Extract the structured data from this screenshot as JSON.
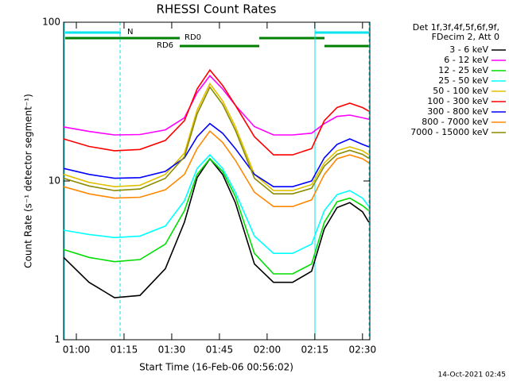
{
  "chart_data": {
    "type": "line",
    "title": "RHESSI Count Rates",
    "x_label": "Start Time (16-Feb-06 00:56:02)",
    "y_label": "Count Rate (s⁻¹ detector segment⁻¹)",
    "legend_title": [
      "Det 1f,3f,4f,5f,6f,9f,",
      "FDecim 2, Att 0"
    ],
    "footer": "14-Oct-2021 02:45",
    "annotations": [
      "N",
      "RD0",
      "RD6"
    ],
    "log_y": true,
    "legend": "right",
    "xlim": [
      56,
      152.3
    ],
    "ylim": [
      1,
      100
    ],
    "xticks": [
      {
        "value": 60,
        "label": "01:00"
      },
      {
        "value": 75,
        "label": "01:15"
      },
      {
        "value": 90,
        "label": "01:30"
      },
      {
        "value": 105,
        "label": "01:45"
      },
      {
        "value": 120,
        "label": "02:00"
      },
      {
        "value": 135,
        "label": "02:15"
      },
      {
        "value": 150,
        "label": "02:30"
      }
    ],
    "yticks": [
      1,
      10,
      100
    ],
    "x": [
      56,
      64,
      72,
      80,
      88,
      94,
      98,
      102,
      106,
      110,
      116,
      122,
      128,
      134,
      138,
      142,
      146,
      150,
      152
    ],
    "series": [
      {
        "name": "3 - 6 keV",
        "color": "#000000",
        "values": [
          3.3,
          2.3,
          1.84,
          1.9,
          2.8,
          5.5,
          10.5,
          13.8,
          11,
          7.3,
          3,
          2.3,
          2.3,
          2.7,
          5,
          6.8,
          7.3,
          6.4,
          5.5
        ]
      },
      {
        "name": "6 - 12 keV",
        "color": "#ff00ff",
        "values": [
          21.9,
          20.5,
          19.5,
          19.6,
          21,
          25,
          36,
          46,
          38,
          30,
          22,
          19.5,
          19.5,
          20,
          23,
          25.5,
          26,
          25,
          24.5
        ]
      },
      {
        "name": "12 - 25 keV",
        "color": "#00dd00",
        "values": [
          3.7,
          3.3,
          3.1,
          3.2,
          4,
          6.5,
          11,
          13.8,
          11.5,
          8,
          3.5,
          2.6,
          2.6,
          3,
          5.5,
          7.4,
          7.8,
          7,
          6.5
        ]
      },
      {
        "name": "25 - 50 keV",
        "color": "#00ffff",
        "values": [
          4.9,
          4.6,
          4.4,
          4.5,
          5.2,
          7.5,
          12,
          14.6,
          12,
          8.5,
          4.5,
          3.5,
          3.5,
          4,
          6.5,
          8.2,
          8.7,
          7.8,
          6.9
        ]
      },
      {
        "name": "50 - 100 keV",
        "color": "#e0c000",
        "values": [
          11,
          9.8,
          9.2,
          9.4,
          11,
          15,
          28,
          41,
          32,
          22,
          11,
          8.7,
          8.7,
          9.5,
          13,
          15.5,
          16.4,
          15.5,
          14.6
        ]
      },
      {
        "name": "100 - 300 keV",
        "color": "#ff0000",
        "values": [
          18.4,
          16.5,
          15.5,
          15.8,
          18,
          24,
          38,
          50,
          40,
          30,
          19,
          14.6,
          14.6,
          16,
          24,
          29,
          30.9,
          29,
          27.5
        ]
      },
      {
        "name": "300 - 800 keV",
        "color": "#0000ff",
        "values": [
          12,
          11,
          10.4,
          10.5,
          11.5,
          14,
          19,
          23,
          20,
          16,
          11,
          9.2,
          9.2,
          10,
          14,
          17,
          18.4,
          17,
          16.4
        ]
      },
      {
        "name": "800 - 7000 keV",
        "color": "#ff8800",
        "values": [
          9.2,
          8.3,
          7.8,
          7.9,
          8.8,
          11,
          16,
          20.6,
          17.5,
          13.5,
          8.5,
          6.9,
          6.9,
          7.6,
          11,
          13.8,
          14.6,
          13.8,
          13
        ]
      },
      {
        "name": "7000 - 15000 keV",
        "color": "#8b8b00",
        "values": [
          10.4,
          9.3,
          8.7,
          8.9,
          10.4,
          14.2,
          26.5,
          39,
          30.4,
          20.9,
          10.4,
          8.3,
          8.3,
          9,
          12.4,
          14.7,
          15.6,
          14.7,
          13.9
        ]
      }
    ]
  }
}
